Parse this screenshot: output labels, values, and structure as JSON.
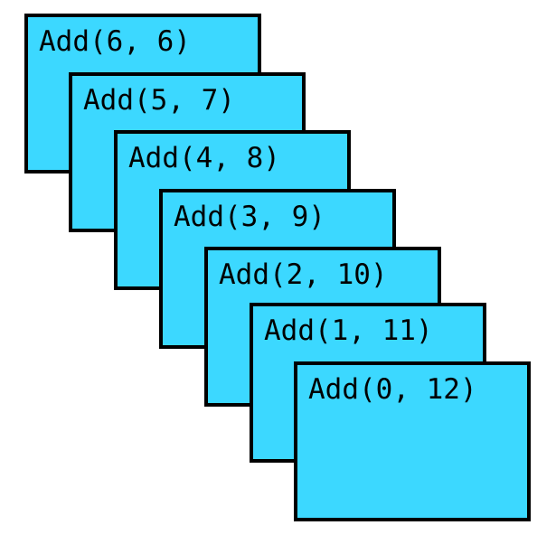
{
  "cards": [
    {
      "label": "Add(6, 6)"
    },
    {
      "label": "Add(5, 7)"
    },
    {
      "label": "Add(4, 8)"
    },
    {
      "label": "Add(3, 9)"
    },
    {
      "label": "Add(2, 10)"
    },
    {
      "label": "Add(1, 11)"
    },
    {
      "label": "Add(0, 12)"
    }
  ],
  "colors": {
    "card_fill": "#3cd8ff",
    "card_border": "#000000",
    "background": "#ffffff"
  }
}
